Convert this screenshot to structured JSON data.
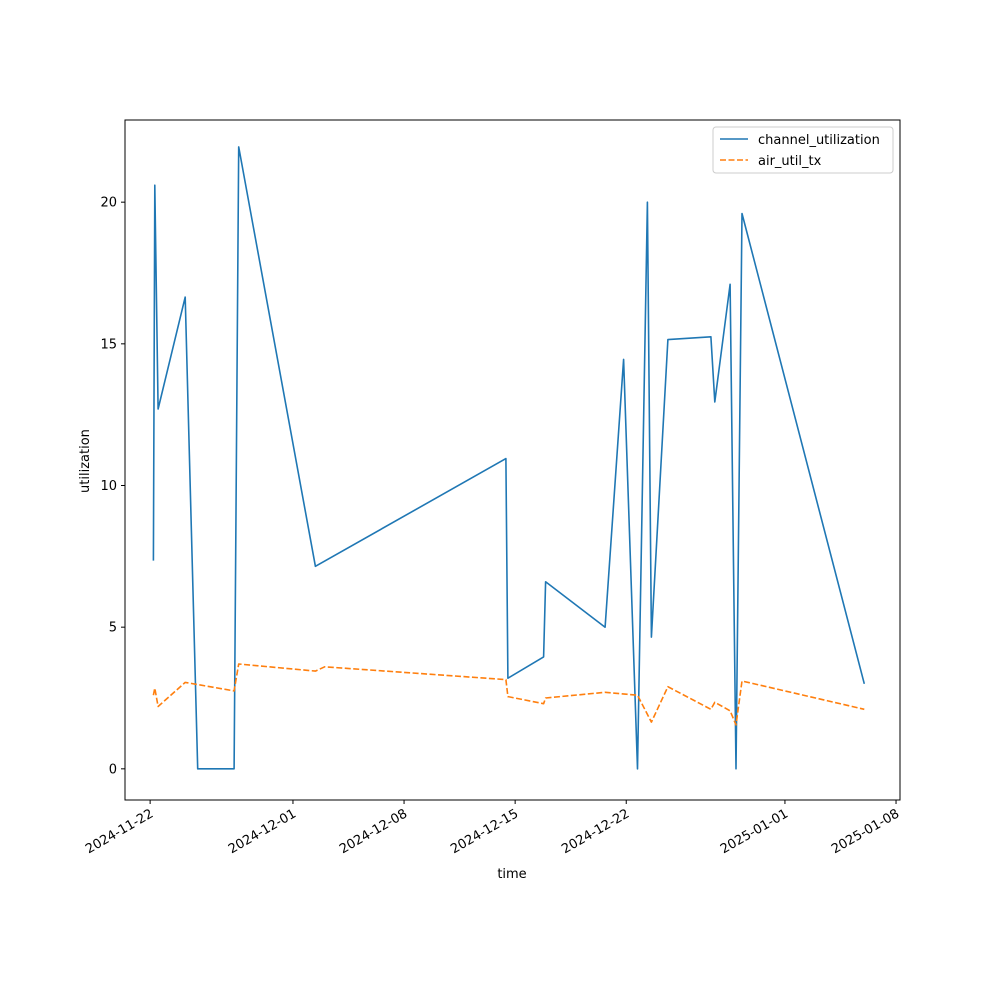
{
  "chart_data": {
    "type": "line",
    "xlabel": "time",
    "ylabel": "utilization",
    "x_ticks": [
      "2024-11-22",
      "2024-12-01",
      "2024-12-08",
      "2024-12-15",
      "2024-12-22",
      "2025-01-01",
      "2025-01-08"
    ],
    "y_ticks": [
      "0",
      "5",
      "10",
      "15",
      "20"
    ],
    "xlim": [
      "2024-11-20T10:00",
      "2025-01-08T06:00"
    ],
    "ylim": [
      -1.1,
      22.9
    ],
    "grid": false,
    "legend_position": "top-right",
    "series": [
      {
        "name": "channel_utilization",
        "color": "#1f77b4",
        "style": "solid",
        "points": [
          [
            "2024-11-22T05:00",
            7.35
          ],
          [
            "2024-11-22T07:00",
            20.6
          ],
          [
            "2024-11-22T12:00",
            12.7
          ],
          [
            "2024-11-24T05:00",
            16.65
          ],
          [
            "2024-11-25T00:00",
            0.0
          ],
          [
            "2024-11-27T07:00",
            0.0
          ],
          [
            "2024-11-27T14:00",
            21.95
          ],
          [
            "2024-12-02T10:00",
            7.15
          ],
          [
            "2024-12-14T10:00",
            10.95
          ],
          [
            "2024-12-14T13:00",
            3.2
          ],
          [
            "2024-12-16T19:00",
            3.95
          ],
          [
            "2024-12-16T22:00",
            6.6
          ],
          [
            "2024-12-20T16:00",
            5.0
          ],
          [
            "2024-12-21T20:00",
            14.45
          ],
          [
            "2024-12-22T17:00",
            0.0
          ],
          [
            "2024-12-23T08:00",
            20.0
          ],
          [
            "2024-12-23T14:00",
            4.65
          ],
          [
            "2024-12-24T15:00",
            15.15
          ],
          [
            "2024-12-27T08:00",
            15.25
          ],
          [
            "2024-12-27T14:00",
            12.95
          ],
          [
            "2024-12-28T13:00",
            17.1
          ],
          [
            "2024-12-28T22:00",
            0.0
          ],
          [
            "2024-12-29T07:00",
            19.6
          ],
          [
            "2025-01-06T00:00",
            3.0
          ]
        ]
      },
      {
        "name": "air_util_tx",
        "color": "#ff7f0e",
        "style": "dashed",
        "points": [
          [
            "2024-11-22T05:00",
            2.6
          ],
          [
            "2024-11-22T07:00",
            2.85
          ],
          [
            "2024-11-22T12:00",
            2.2
          ],
          [
            "2024-11-24T05:00",
            3.05
          ],
          [
            "2024-11-27T07:00",
            2.75
          ],
          [
            "2024-11-27T14:00",
            3.7
          ],
          [
            "2024-12-02T10:00",
            3.45
          ],
          [
            "2024-12-03T00:00",
            3.6
          ],
          [
            "2024-12-14T10:00",
            3.15
          ],
          [
            "2024-12-14T13:00",
            2.55
          ],
          [
            "2024-12-16T19:00",
            2.3
          ],
          [
            "2024-12-16T22:00",
            2.5
          ],
          [
            "2024-12-20T16:00",
            2.7
          ],
          [
            "2024-12-22T17:00",
            2.6
          ],
          [
            "2024-12-23T14:00",
            1.65
          ],
          [
            "2024-12-24T15:00",
            2.9
          ],
          [
            "2024-12-27T08:00",
            2.1
          ],
          [
            "2024-12-27T14:00",
            2.35
          ],
          [
            "2024-12-28T13:00",
            2.05
          ],
          [
            "2024-12-28T22:00",
            1.55
          ],
          [
            "2024-12-29T07:00",
            3.1
          ],
          [
            "2025-01-06T00:00",
            2.1
          ]
        ]
      }
    ]
  }
}
